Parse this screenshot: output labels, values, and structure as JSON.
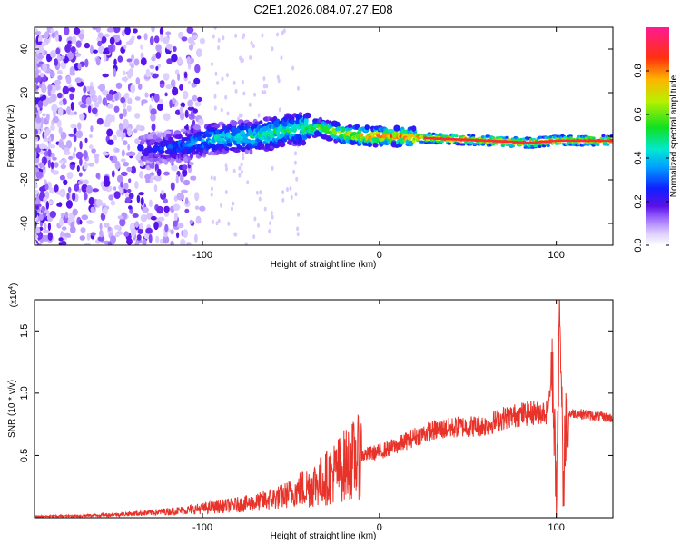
{
  "figure": {
    "title": "C2E1.2026.084.07.27.E08"
  },
  "colors": {
    "snr_line": "#e8332a",
    "frame": "#000000",
    "colormap": [
      "#b9a3ff",
      "#7a2cf2",
      "#3010e0",
      "#0a3cff",
      "#00a0ff",
      "#00e8e0",
      "#28e040",
      "#c0f000",
      "#ffb000",
      "#ff3018",
      "#ff1a80"
    ]
  },
  "chart_data": [
    {
      "type": "heatmap",
      "title": "C2E1.2026.084.07.27.E08",
      "xlabel": "Height of straight line (km)",
      "ylabel": "Frequency (Hz)",
      "xlim": [
        -195,
        132
      ],
      "ylim": [
        -50,
        50
      ],
      "x_ticks": [
        -100,
        0,
        100
      ],
      "y_ticks": [
        -40,
        -20,
        0,
        20,
        40
      ],
      "colorbar": {
        "label": "Normalized spectral amplitude",
        "range": [
          0,
          1
        ],
        "ticks": [
          "0.0",
          "0.2",
          "0.4",
          "0.6",
          "0.8"
        ]
      },
      "ridge": {
        "description_points_x_km": [
          -130,
          -110,
          -95,
          -70,
          -50,
          -35,
          -20,
          -5,
          10,
          30,
          60,
          85,
          100,
          132
        ],
        "center_freq_hz": [
          -6,
          -4,
          -1,
          0,
          3,
          4,
          1,
          0,
          0,
          -1,
          -2,
          -3,
          -2,
          -2
        ],
        "peak_amplitude": [
          0.25,
          0.35,
          0.45,
          0.5,
          0.55,
          0.6,
          0.75,
          0.85,
          0.85,
          0.9,
          0.95,
          0.95,
          0.9,
          0.95
        ]
      }
    },
    {
      "type": "line",
      "xlabel": "Height of straight line (km)",
      "ylabel": "SNR (10 * v/v)",
      "scale_label": "(x10",
      "scale_exponent": "4",
      "xlim": [
        -195,
        132
      ],
      "ylim": [
        0,
        17500
      ],
      "x_ticks": [
        -100,
        0,
        100
      ],
      "y_ticks": [
        "0.5",
        "1.0",
        "1.5"
      ],
      "series": [
        {
          "name": "SNR",
          "x": [
            -195,
            -170,
            -150,
            -130,
            -110,
            -90,
            -70,
            -55,
            -40,
            -30,
            -20,
            -10,
            0,
            10,
            20,
            30,
            45,
            60,
            70,
            80,
            90,
            95,
            98,
            100,
            102,
            104,
            106,
            110,
            120,
            132
          ],
          "y": [
            100,
            150,
            250,
            400,
            600,
            900,
            1200,
            1700,
            2500,
            3200,
            4200,
            5000,
            5300,
            5800,
            6500,
            7000,
            7300,
            7400,
            8000,
            8300,
            8500,
            8500,
            12000,
            1200,
            17000,
            3000,
            8300,
            8400,
            8200,
            8000
          ]
        }
      ]
    }
  ]
}
